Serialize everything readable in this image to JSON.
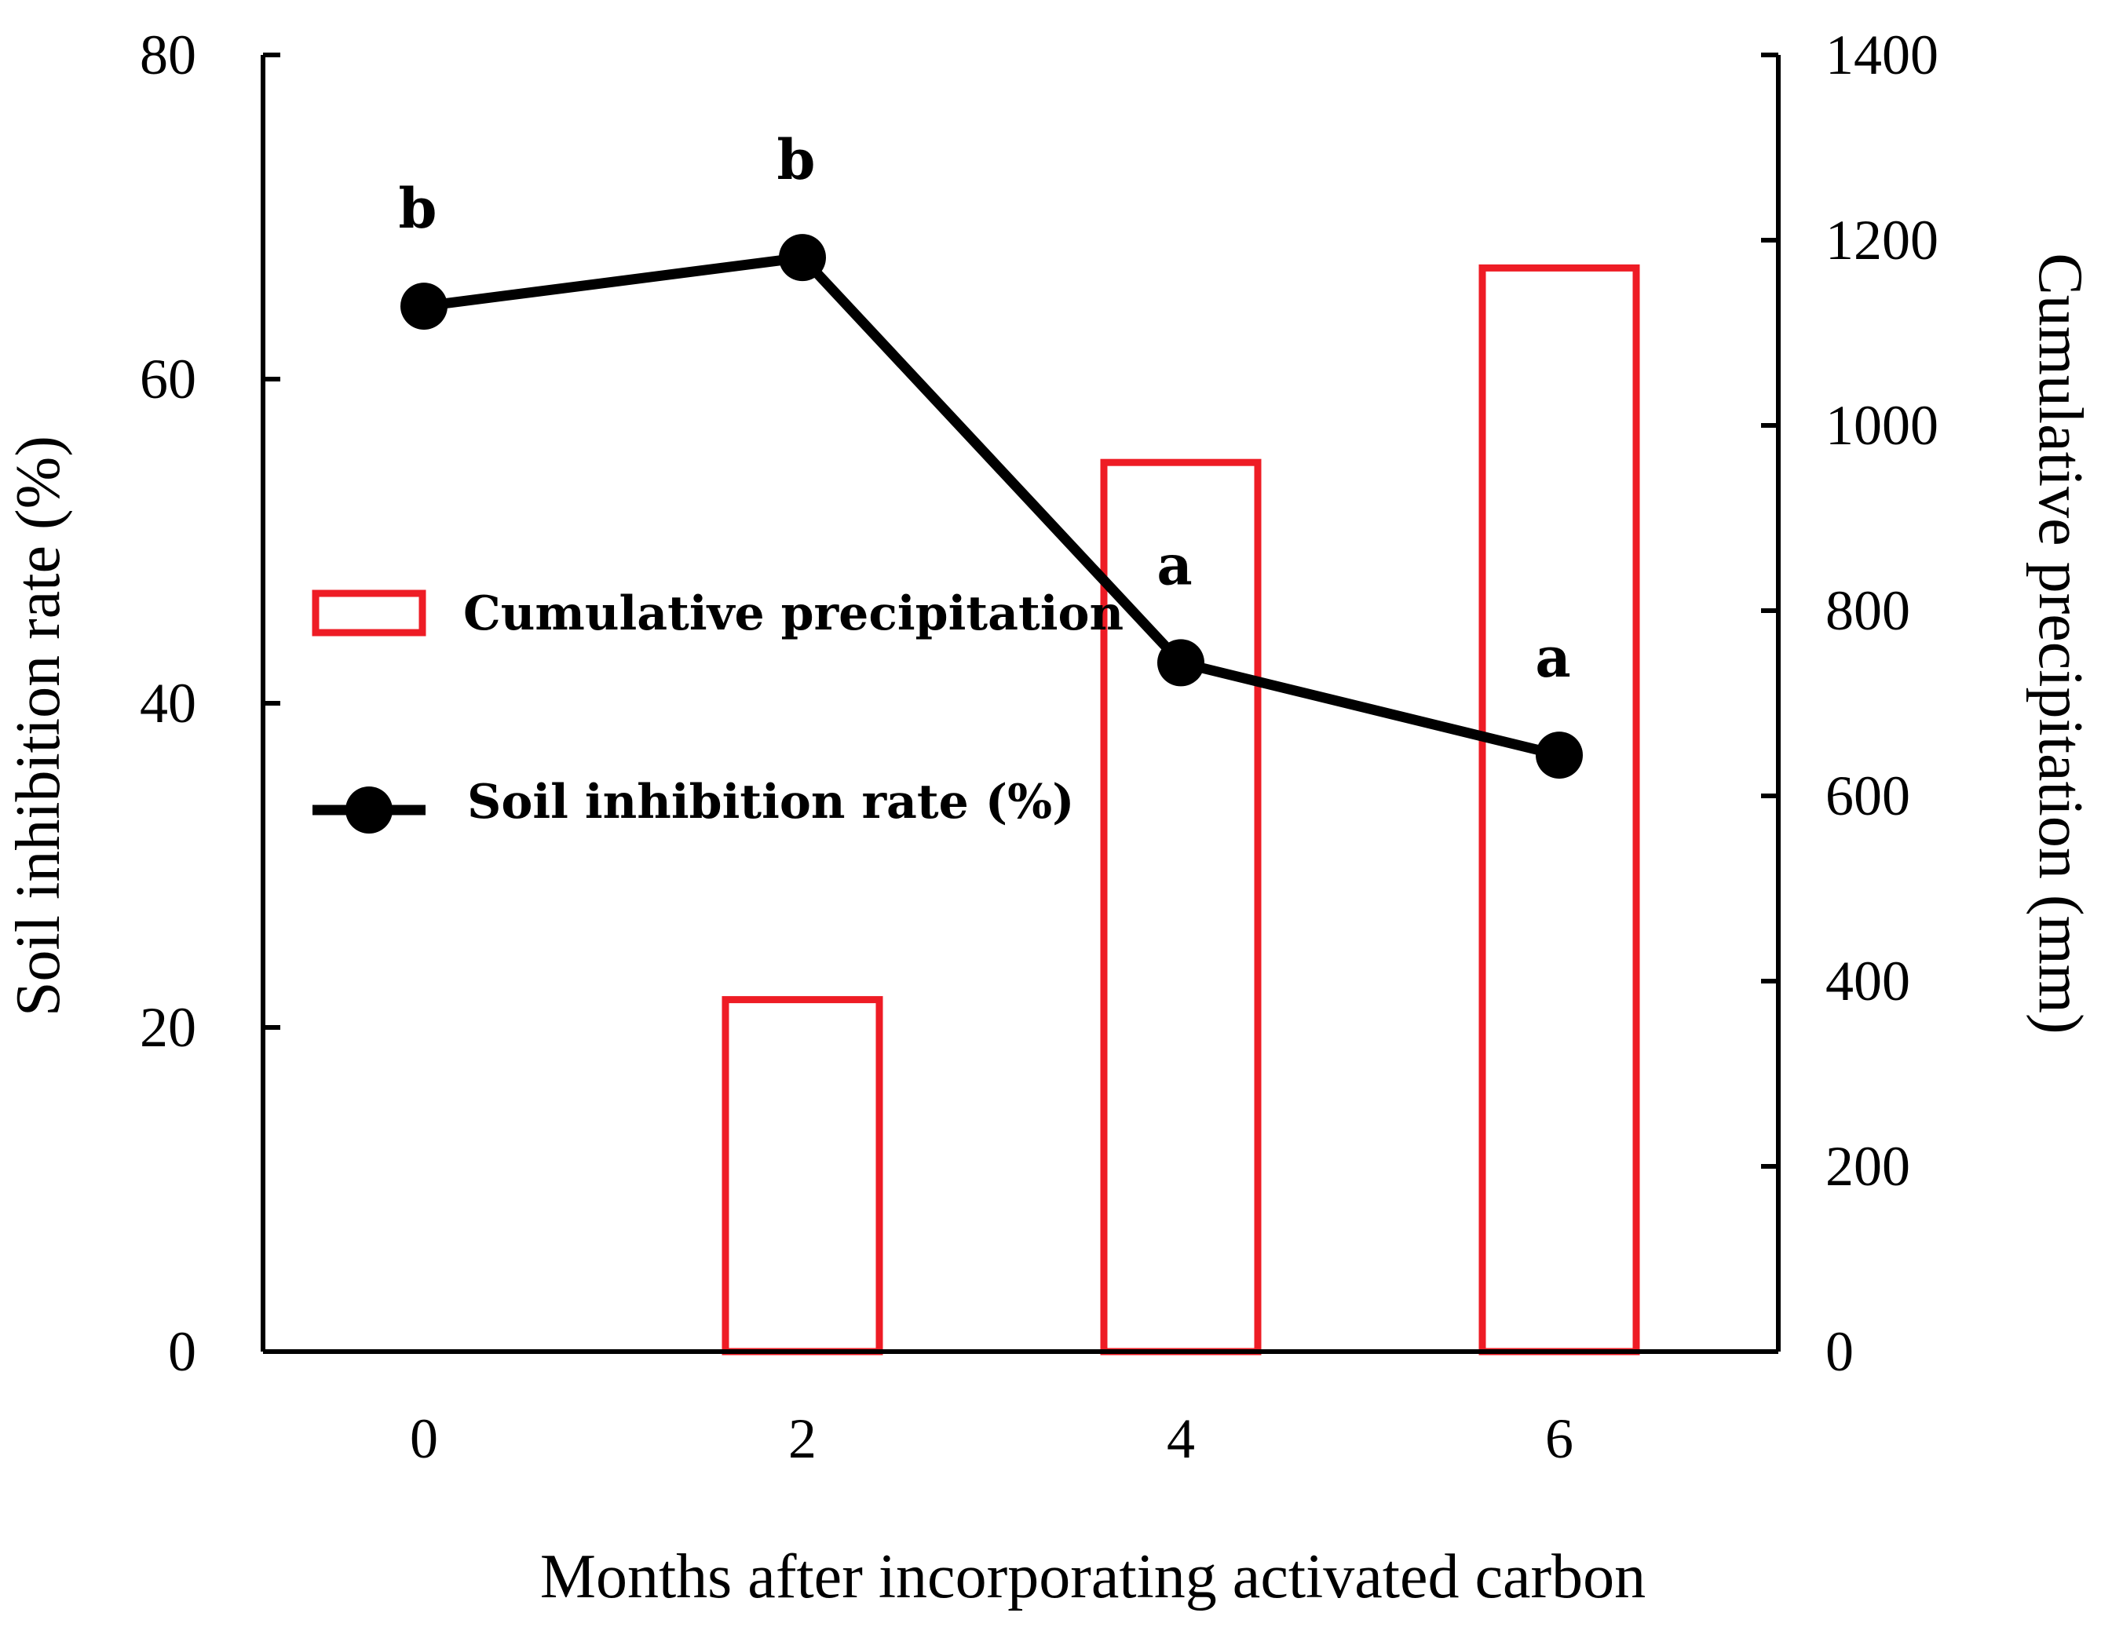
{
  "chart_data": {
    "type": "bar+line",
    "xlabel": "Months after incorporating activated carbon",
    "x": [
      0,
      2,
      4,
      6
    ],
    "xticks": [
      "0",
      "2",
      "4",
      "6"
    ],
    "y_left": {
      "label": "Soil inhibition rate (%)",
      "lim": [
        0,
        80
      ],
      "ticks": [
        "0",
        "20",
        "40",
        "60",
        "80"
      ]
    },
    "y_right": {
      "label": "Cumulative precipitation (mm)",
      "lim": [
        0,
        1400
      ],
      "ticks": [
        "0",
        "200",
        "400",
        "600",
        "800",
        "1000",
        "1200",
        "1400"
      ]
    },
    "series": [
      {
        "name": "Cumulative precipitation",
        "kind": "bar",
        "axis": "right",
        "color": "#ee1c25",
        "x": [
          2,
          4,
          6
        ],
        "values": [
          380,
          960,
          1170
        ]
      },
      {
        "name": "Soil inhibition rate (%)",
        "kind": "line",
        "axis": "left",
        "color": "#000000",
        "x": [
          0,
          2,
          4,
          6
        ],
        "values": [
          64.5,
          67.5,
          42.5,
          36.8
        ],
        "significance": [
          "b",
          "b",
          "a",
          "a"
        ]
      }
    ],
    "legend": {
      "position": "center-left",
      "entries": [
        "Cumulative precipitation",
        "Soil inhibition rate (%)"
      ]
    },
    "grid": false
  }
}
